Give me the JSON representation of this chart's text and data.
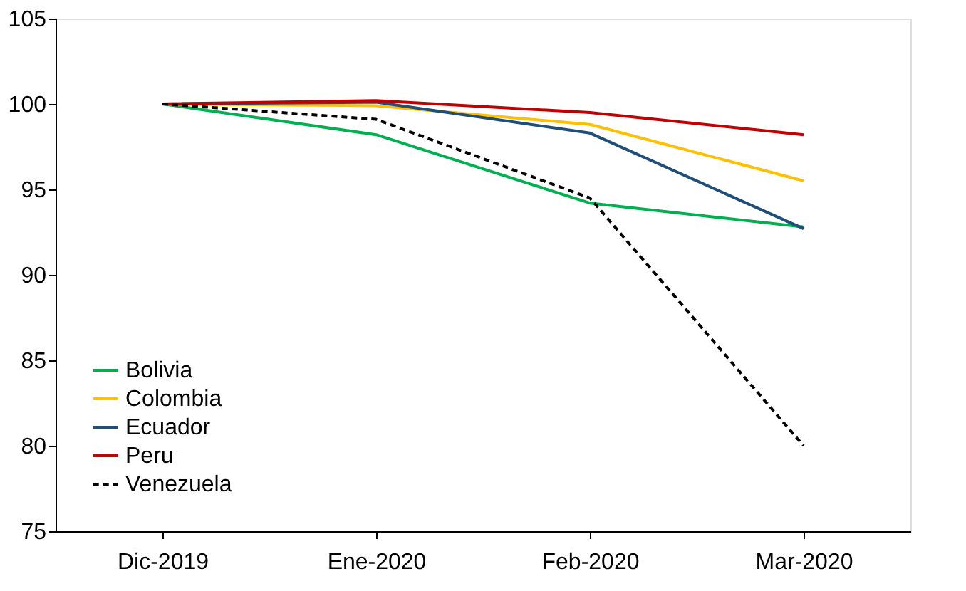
{
  "chart_data": {
    "type": "line",
    "categories": [
      "Dic-2019",
      "Ene-2020",
      "Feb-2020",
      "Mar-2020"
    ],
    "series": [
      {
        "name": "Bolivia",
        "color": "#00b050",
        "values": [
          100,
          98.2,
          94.2,
          92.8
        ]
      },
      {
        "name": "Colombia",
        "color": "#ffc000",
        "values": [
          100,
          99.9,
          98.8,
          95.5
        ]
      },
      {
        "name": "Ecuador",
        "color": "#1f4e79",
        "values": [
          100,
          100.1,
          98.3,
          92.7
        ]
      },
      {
        "name": "Peru",
        "color": "#c00000",
        "values": [
          100,
          100.2,
          99.5,
          98.2
        ]
      },
      {
        "name": "Venezuela",
        "color": "#000000",
        "values": [
          100,
          99.1,
          94.5,
          80.0
        ],
        "line_style": "dashed"
      }
    ],
    "ylim": [
      75,
      105
    ],
    "yticks": [
      75,
      80,
      85,
      90,
      95,
      100,
      105
    ],
    "grid": false,
    "legend": "bottom left",
    "marker": "none"
  }
}
